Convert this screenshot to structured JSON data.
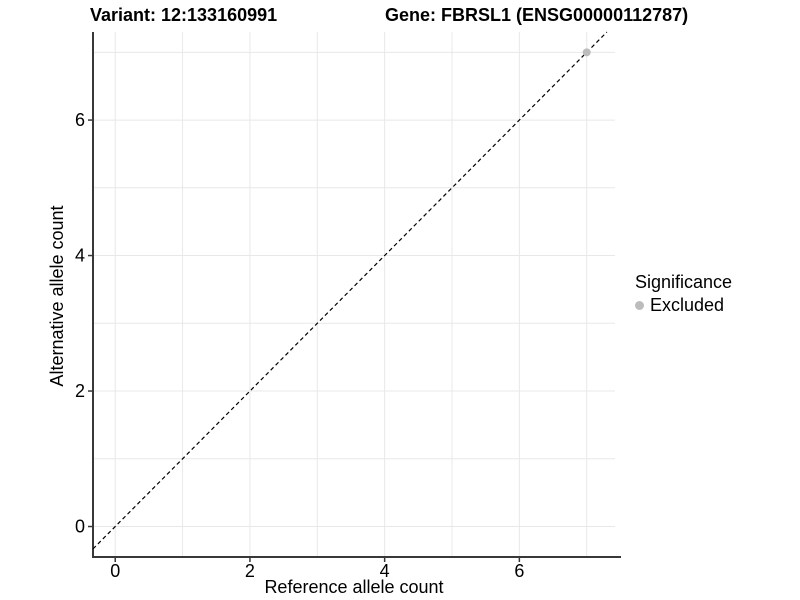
{
  "header": {
    "variant_title": "Variant: 12:133160991",
    "gene_title": "Gene: FBRSL1 (ENSG00000112787)"
  },
  "chart_data": {
    "type": "scatter",
    "xlabel": "Reference allele count",
    "ylabel": "Alternative allele count",
    "xlim": [
      -0.33,
      7.42
    ],
    "ylim": [
      -0.45,
      7.3
    ],
    "x_ticks": [
      0,
      2,
      4,
      6
    ],
    "y_ticks": [
      0,
      2,
      4,
      6
    ],
    "x_gridlines": [
      0,
      1,
      2,
      3,
      4,
      5,
      6,
      7
    ],
    "y_gridlines": [
      0,
      1,
      2,
      3,
      4,
      5,
      6,
      7
    ],
    "grid": true,
    "identity_line": {
      "slope": 1,
      "intercept": 0,
      "style": "dashed",
      "color": "#000000"
    },
    "series": [
      {
        "name": "Excluded",
        "color": "#bcbcbc",
        "points": [
          [
            7,
            7
          ]
        ]
      }
    ],
    "legend": {
      "title": "Significance",
      "position": "right",
      "entries": [
        {
          "label": "Excluded",
          "color": "#bcbcbc"
        }
      ]
    },
    "colors": {
      "gridline": "#e8e8e8",
      "axis_line": "#383838",
      "tick": "#383838",
      "text": "#000000"
    }
  }
}
